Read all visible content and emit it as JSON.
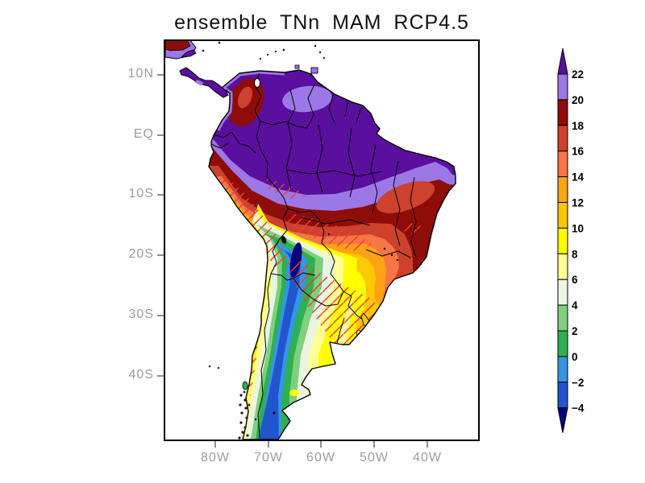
{
  "title": "ensemble TNn MAM RCP4.5",
  "chart_data": {
    "type": "heatmap",
    "subtype": "filled-contour-map",
    "title": "ensemble TNn MAM RCP4.5",
    "variable": "TNn",
    "season": "MAM",
    "scenario": "RCP4.5",
    "region": "South America",
    "x_axis": "longitude",
    "y_axis": "latitude",
    "lon_tick_labels": [
      "80W",
      "70W",
      "60W",
      "50W",
      "40W"
    ],
    "lat_tick_labels": [
      "10N",
      "EQ",
      "10S",
      "20S",
      "30S",
      "40S"
    ],
    "lon_range_approx": [
      "90W",
      "30W"
    ],
    "lat_range_approx": [
      "16N",
      "51S"
    ],
    "contour_levels": [
      -4,
      -2,
      0,
      2,
      4,
      6,
      8,
      10,
      12,
      14,
      16,
      18,
      20,
      22
    ],
    "level_colors_low_to_high": [
      "#00007e",
      "#2155cd",
      "#3596e3",
      "#2eb050",
      "#7ed07e",
      "#eaf5e2",
      "#ffff94",
      "#ffff00",
      "#ffc805",
      "#ffa314",
      "#f87646",
      "#cd412d",
      "#8e0d08",
      "#9b78e6",
      "#5a0f9e"
    ],
    "colorbar": {
      "orientation": "vertical",
      "boundary_labels": [
        "22",
        "20",
        "18",
        "16",
        "14",
        "12",
        "10",
        "8",
        "6",
        "4",
        "2",
        "0",
        "−2",
        "−4"
      ],
      "segment_colors_top_to_bottom": [
        "#9b78e6",
        "#8e0d08",
        "#cd412d",
        "#f87646",
        "#ffa314",
        "#ffc805",
        "#ffff00",
        "#ffff94",
        "#eaf5e2",
        "#7ed07e",
        "#2eb050",
        "#3596e3",
        "#2155cd"
      ],
      "above_max_color": "#5a0f9e",
      "below_min_color": "#00007e"
    },
    "value_by_region": [
      {
        "area": "Amazon basin and northern Brazil",
        "value_range": "above 22"
      },
      {
        "area": "Colombia-Venezuela interior",
        "value_range": "16 to 20"
      },
      {
        "area": "central-eastern Brazil belt",
        "value_range": "12 to 20"
      },
      {
        "area": "southern Brazil / Uruguay",
        "value_range": "6 to 12"
      },
      {
        "area": "Altiplano (Peru-Bolivia Andes)",
        "value_range": "below -4 to 0"
      },
      {
        "area": "Patagonia core",
        "value_range": "-4 to 2"
      }
    ],
    "hatching": {
      "style": "red diagonal lines",
      "color": "#f13a3a",
      "areas": "Peruvian Andes slope, Bolivia-Paraguay lowlands, southern Brazil and Uruguay, Patagonian Andes"
    },
    "grid": false,
    "legend_position": "right"
  },
  "frame": {
    "border_color": "#000000",
    "ocean_color": "#ffffff"
  },
  "text_colors": {
    "title": "#111111",
    "axis_labels": "#9c9c9c"
  }
}
